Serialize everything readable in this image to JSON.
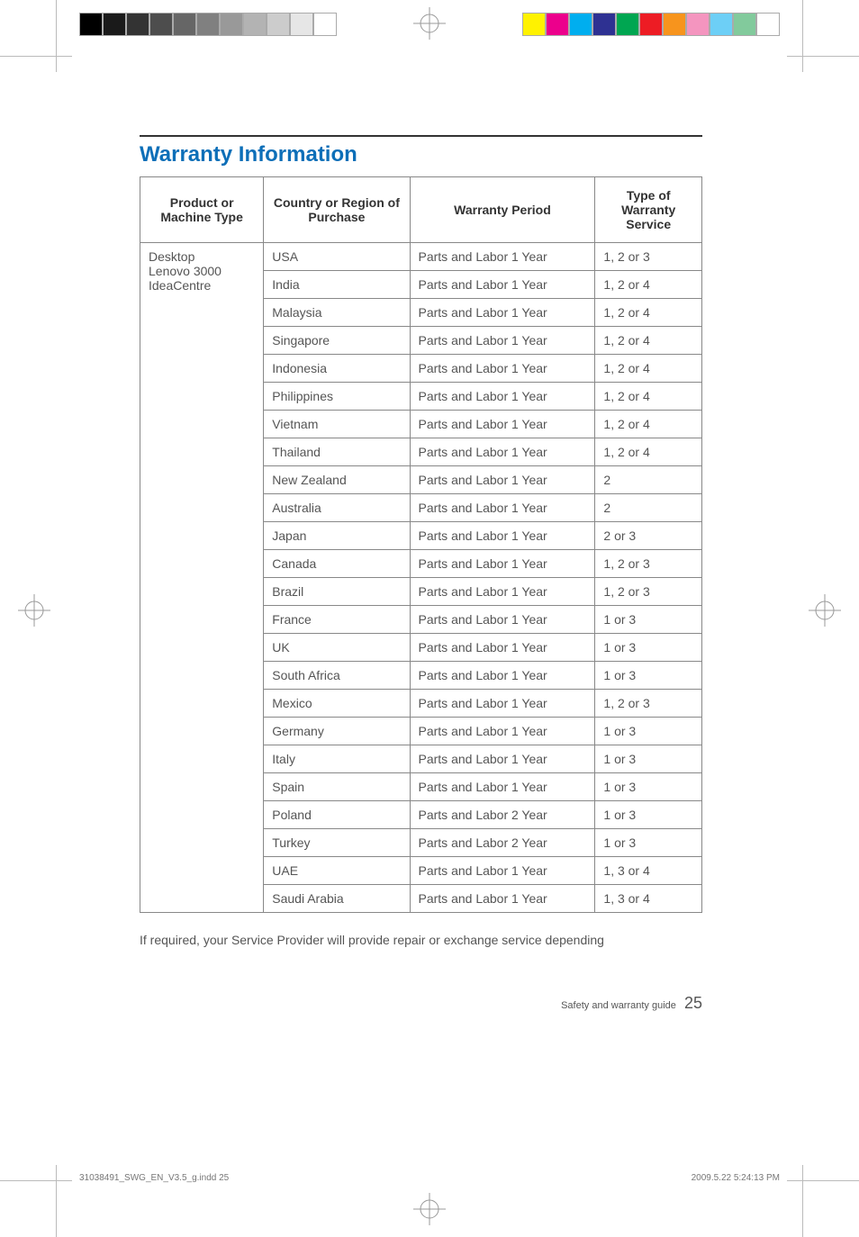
{
  "title": "Warranty Information",
  "table": {
    "headers": {
      "product": "Product or Machine Type",
      "country": "Country or Region of Purchase",
      "period": "Warranty Period",
      "type": "Type of Warranty Service"
    },
    "product_cell": "Desktop\nLenovo 3000\nIdeaCentre",
    "rows": [
      {
        "country": "USA",
        "period": "Parts and Labor 1 Year",
        "type": "1, 2 or 3"
      },
      {
        "country": "India",
        "period": "Parts and Labor 1 Year",
        "type": "1, 2 or 4"
      },
      {
        "country": "Malaysia",
        "period": "Parts and Labor 1 Year",
        "type": "1, 2 or 4"
      },
      {
        "country": "Singapore",
        "period": "Parts and Labor 1 Year",
        "type": "1, 2 or 4"
      },
      {
        "country": "Indonesia",
        "period": "Parts and Labor 1 Year",
        "type": "1, 2 or 4"
      },
      {
        "country": "Philippines",
        "period": "Parts and Labor 1 Year",
        "type": "1, 2 or 4"
      },
      {
        "country": "Vietnam",
        "period": "Parts and Labor 1 Year",
        "type": "1, 2 or 4"
      },
      {
        "country": "Thailand",
        "period": "Parts and Labor 1 Year",
        "type": "1, 2 or 4"
      },
      {
        "country": "New Zealand",
        "period": "Parts and Labor 1 Year",
        "type": "2"
      },
      {
        "country": "Australia",
        "period": "Parts and Labor 1 Year",
        "type": "2"
      },
      {
        "country": "Japan",
        "period": "Parts and Labor 1 Year",
        "type": "2 or 3"
      },
      {
        "country": "Canada",
        "period": "Parts and Labor 1 Year",
        "type": "1, 2 or 3"
      },
      {
        "country": "Brazil",
        "period": "Parts and Labor 1 Year",
        "type": "1, 2 or 3"
      },
      {
        "country": "France",
        "period": "Parts and Labor 1 Year",
        "type": "1 or 3"
      },
      {
        "country": "UK",
        "period": "Parts and Labor 1 Year",
        "type": "1 or 3"
      },
      {
        "country": "South Africa",
        "period": "Parts and Labor 1 Year",
        "type": "1 or 3"
      },
      {
        "country": "Mexico",
        "period": "Parts and Labor 1 Year",
        "type": "1, 2 or 3"
      },
      {
        "country": "Germany",
        "period": "Parts and Labor 1 Year",
        "type": "1 or 3"
      },
      {
        "country": "Italy",
        "period": "Parts and Labor 1 Year",
        "type": "1 or 3"
      },
      {
        "country": "Spain",
        "period": "Parts and Labor 1 Year",
        "type": "1 or 3"
      },
      {
        "country": "Poland",
        "period": "Parts and Labor 2 Year",
        "type": "1 or 3"
      },
      {
        "country": "Turkey",
        "period": "Parts and Labor 2 Year",
        "type": "1 or 3"
      },
      {
        "country": "UAE",
        "period": "Parts and Labor 1 Year",
        "type": "1, 3 or 4"
      },
      {
        "country": "Saudi Arabia",
        "period": "Parts and Labor 1 Year",
        "type": "1, 3 or 4"
      }
    ]
  },
  "bodytext": "If required, your Service Provider will provide repair or exchange service depending",
  "footer": {
    "label": "Safety and warranty guide",
    "pagenum": "25"
  },
  "slug": {
    "left": "31038491_SWG_EN_V3.5_g.indd   25",
    "right": "2009.5.22   5:24:13 PM"
  },
  "colorbars": {
    "left": [
      "#000000",
      "#1a1a1a",
      "#333333",
      "#4d4d4d",
      "#666666",
      "#808080",
      "#999999",
      "#b3b3b3",
      "#cccccc",
      "#e6e6e6",
      "#ffffff"
    ],
    "right": [
      "#fff200",
      "#ec008c",
      "#00aeef",
      "#2e3192",
      "#00a651",
      "#ed1c24",
      "#f7941d",
      "#f495bf",
      "#6dcff6",
      "#82ca9c",
      "#ffffff"
    ]
  },
  "reg_mark_color": "#999999",
  "title_color": "#0d6fb8",
  "border_color": "#888888",
  "text_color": "#555555"
}
